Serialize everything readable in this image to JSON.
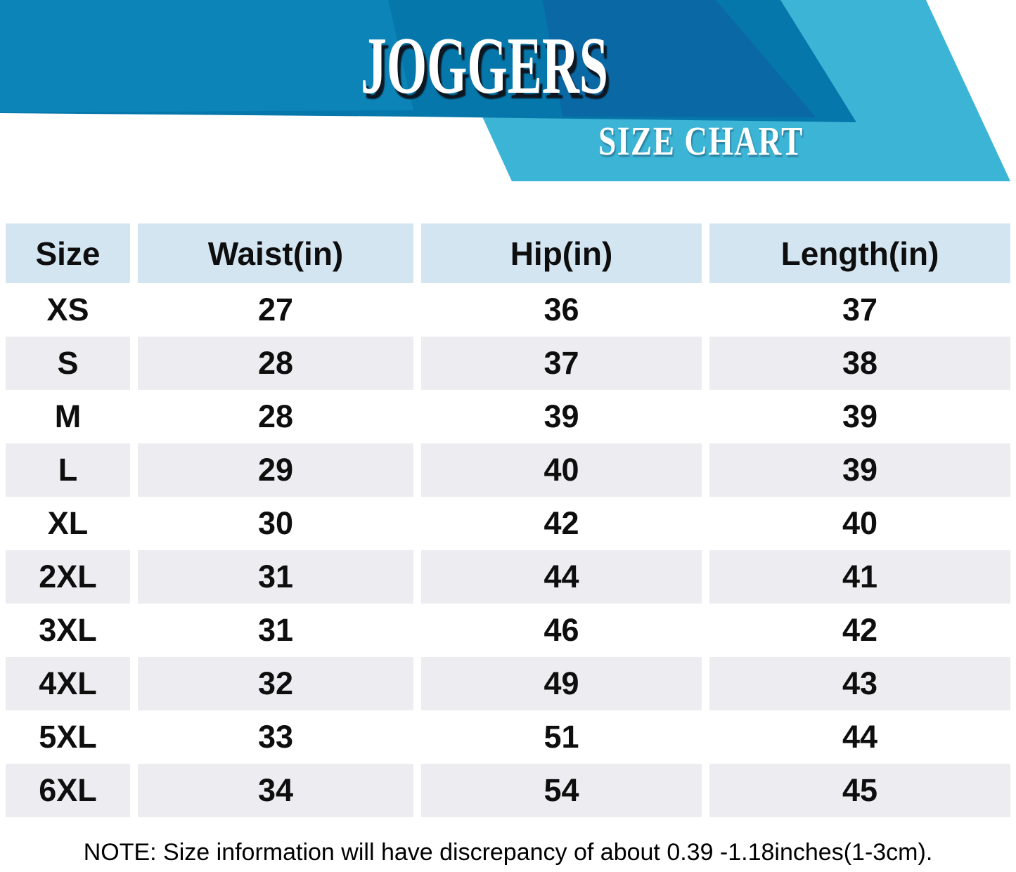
{
  "banner": {
    "title": "JOGGERS",
    "subtitle": "SIZE CHART"
  },
  "colors": {
    "banner-main": "#0577AA",
    "banner-light": "#0C84B7",
    "banner-dark": "#0A68A4",
    "banner-sky": "#3CB4D6",
    "header-cell": "#D3E5F1",
    "row-alt": "#EDEDF1",
    "ink": "#0e0e0e",
    "title-shadow": "#0d1722"
  },
  "chart_data": {
    "type": "table",
    "title": "JOGGERS SIZE CHART",
    "columns": [
      "Size",
      "Waist(in)",
      "Hip(in)",
      "Length(in)"
    ],
    "rows": [
      [
        "XS",
        "27",
        "36",
        "37"
      ],
      [
        "S",
        "28",
        "37",
        "38"
      ],
      [
        "M",
        "28",
        "39",
        "39"
      ],
      [
        "L",
        "29",
        "40",
        "39"
      ],
      [
        "XL",
        "30",
        "42",
        "40"
      ],
      [
        "2XL",
        "31",
        "44",
        "41"
      ],
      [
        "3XL",
        "31",
        "46",
        "42"
      ],
      [
        "4XL",
        "32",
        "49",
        "43"
      ],
      [
        "5XL",
        "33",
        "51",
        "44"
      ],
      [
        "6XL",
        "34",
        "54",
        "45"
      ]
    ]
  },
  "note": "NOTE: Size information will have discrepancy of about 0.39 -1.18inches(1-3cm)."
}
